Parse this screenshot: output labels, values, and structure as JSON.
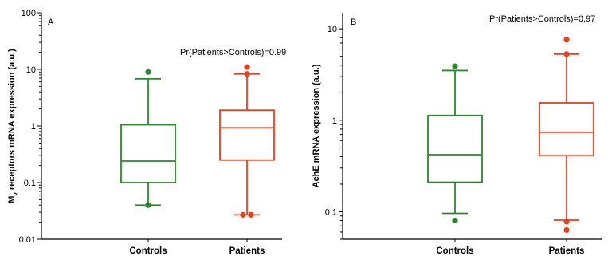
{
  "chart_data": [
    {
      "type": "box",
      "panel": "A",
      "ylabel_main": "M",
      "ylabel_sub": "2",
      "ylabel_rest": " receptors mRNA expression (a.u.)",
      "y_scale": "log",
      "ylim": [
        0.01,
        100
      ],
      "y_ticks": [
        0.01,
        0.1,
        1,
        10,
        100
      ],
      "y_tick_labels": [
        "0.01",
        "0.1",
        "1",
        "10",
        "100"
      ],
      "categories": [
        "Controls",
        "Patients"
      ],
      "annotation": "Pr(Patients>Controls)=0.99",
      "series": [
        {
          "category": "Controls",
          "color": "#2a8a2a",
          "whisker_low": 0.04,
          "q1": 0.1,
          "median": 0.24,
          "q3": 1.05,
          "whisker_high": 6.8,
          "outliers": [
            0.04,
            9.0
          ]
        },
        {
          "category": "Patients",
          "color": "#e8401c",
          "whisker_low": 0.027,
          "q1": 0.25,
          "median": 0.93,
          "q3": 1.9,
          "whisker_high": 8.3,
          "outliers": [
            0.027,
            0.027,
            8.3,
            11.0
          ]
        }
      ]
    },
    {
      "type": "box",
      "panel": "B",
      "ylabel_main": "AchE mRNA expression (a.u.)",
      "y_scale": "log",
      "ylim": [
        0.05,
        15
      ],
      "y_ticks": [
        0.1,
        1,
        10
      ],
      "y_tick_labels": [
        "0.1",
        "1",
        "10"
      ],
      "categories": [
        "Controls",
        "Patients"
      ],
      "annotation": "Pr(Patients>Controls)=0.97",
      "series": [
        {
          "category": "Controls",
          "color": "#2a8a2a",
          "whisker_low": 0.096,
          "q1": 0.21,
          "median": 0.42,
          "q3": 1.13,
          "whisker_high": 3.5,
          "outliers": [
            0.08,
            3.9
          ]
        },
        {
          "category": "Patients",
          "color": "#e8401c",
          "whisker_low": 0.081,
          "q1": 0.41,
          "median": 0.74,
          "q3": 1.55,
          "whisker_high": 5.3,
          "outliers": [
            0.063,
            0.078,
            5.3,
            7.6
          ]
        }
      ]
    }
  ]
}
